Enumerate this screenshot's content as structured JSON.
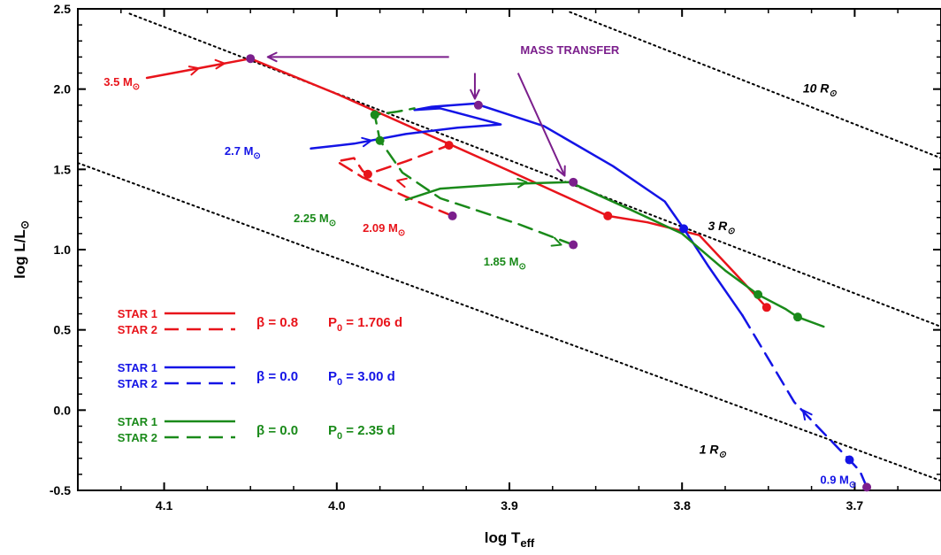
{
  "colors": {
    "red": "#e8141b",
    "blue": "#1414e6",
    "green": "#1a8a1a",
    "purple": "#7b1f8c"
  },
  "chart_data": {
    "type": "line",
    "xlabel": "log T",
    "xlabel_sub": "eff",
    "ylabel": "log L/L",
    "ylabel_sub": "⊙",
    "xlim": [
      4.15,
      3.65
    ],
    "ylim": [
      -0.5,
      2.5
    ],
    "x_reversed": true,
    "x_ticks": [
      4.1,
      4.0,
      3.9,
      3.8,
      3.7
    ],
    "x_tick_labels": [
      "4.1",
      "4.0",
      "3.9",
      "3.8",
      "3.7"
    ],
    "y_ticks": [
      -0.5,
      0.0,
      0.5,
      1.0,
      1.5,
      2.0,
      2.5
    ],
    "y_tick_labels": [
      "-0.5",
      "0.0",
      "0.5",
      "1.0",
      "1.5",
      "2.0",
      "2.5"
    ],
    "grid": false,
    "radius_lines": [
      {
        "label": "1 R",
        "sub": "⊙",
        "points": [
          [
            4.15,
            1.54
          ],
          [
            3.65,
            -0.44
          ]
        ],
        "label_at": [
          3.79,
          -0.27
        ]
      },
      {
        "label": "3 R",
        "sub": "⊙",
        "points": [
          [
            4.12,
            2.47
          ],
          [
            3.65,
            0.52
          ]
        ],
        "label_at": [
          3.785,
          1.12
        ]
      },
      {
        "label": "10 R",
        "sub": "⊙",
        "points": [
          [
            3.865,
            2.48
          ],
          [
            3.65,
            1.57
          ]
        ],
        "label_at": [
          3.73,
          1.98
        ]
      }
    ],
    "series": [
      {
        "name": "STAR 1",
        "color": "red",
        "dash": false,
        "points": [
          [
            4.11,
            2.07
          ],
          [
            4.08,
            2.13
          ],
          [
            4.05,
            2.19
          ],
          [
            4.0,
            1.97
          ],
          [
            3.95,
            1.73
          ],
          [
            3.9,
            1.49
          ],
          [
            3.843,
            1.21
          ],
          [
            3.82,
            1.17
          ],
          [
            3.79,
            1.09
          ],
          [
            3.77,
            0.86
          ],
          [
            3.751,
            0.64
          ]
        ]
      },
      {
        "name": "STAR 2",
        "color": "red",
        "dash": true,
        "points": [
          [
            3.933,
            1.21
          ],
          [
            3.96,
            1.33
          ],
          [
            3.985,
            1.45
          ],
          [
            4.0,
            1.55
          ],
          [
            3.99,
            1.57
          ],
          [
            3.985,
            1.49
          ],
          [
            3.982,
            1.47
          ],
          [
            3.96,
            1.55
          ],
          [
            3.935,
            1.65
          ]
        ]
      },
      {
        "name": "STAR 1",
        "color": "blue",
        "dash": false,
        "points": [
          [
            4.015,
            1.63
          ],
          [
            3.99,
            1.66
          ],
          [
            3.96,
            1.72
          ],
          [
            3.93,
            1.76
          ],
          [
            3.905,
            1.78
          ],
          [
            3.94,
            1.88
          ],
          [
            3.955,
            1.87
          ],
          [
            3.945,
            1.89
          ],
          [
            3.92,
            1.91
          ],
          [
            3.88,
            1.77
          ],
          [
            3.84,
            1.52
          ],
          [
            3.81,
            1.3
          ],
          [
            3.799,
            1.13
          ],
          [
            3.785,
            0.9
          ],
          [
            3.765,
            0.59
          ]
        ]
      },
      {
        "name": "STAR 2",
        "color": "blue",
        "dash": true,
        "points": [
          [
            3.765,
            0.59
          ],
          [
            3.75,
            0.32
          ],
          [
            3.735,
            0.05
          ],
          [
            3.72,
            -0.12
          ],
          [
            3.703,
            -0.31
          ],
          [
            3.697,
            -0.38
          ],
          [
            3.693,
            -0.48
          ]
        ]
      },
      {
        "name": "STAR 1",
        "color": "green",
        "dash": false,
        "points": [
          [
            3.96,
            1.31
          ],
          [
            3.94,
            1.38
          ],
          [
            3.9,
            1.41
          ],
          [
            3.865,
            1.42
          ],
          [
            3.83,
            1.25
          ],
          [
            3.8,
            1.1
          ],
          [
            3.775,
            0.87
          ],
          [
            3.756,
            0.72
          ],
          [
            3.74,
            0.63
          ],
          [
            3.733,
            0.58
          ],
          [
            3.718,
            0.52
          ]
        ]
      },
      {
        "name": "STAR 2",
        "color": "green",
        "dash": true,
        "points": [
          [
            3.863,
            1.03
          ],
          [
            3.895,
            1.16
          ],
          [
            3.94,
            1.32
          ],
          [
            3.962,
            1.48
          ],
          [
            3.975,
            1.68
          ],
          [
            3.978,
            1.84
          ],
          [
            3.965,
            1.86
          ],
          [
            3.955,
            1.88
          ]
        ]
      }
    ],
    "markers": [
      {
        "point": [
          4.05,
          2.19
        ],
        "color": "purple"
      },
      {
        "point": [
          3.918,
          1.9
        ],
        "color": "purple"
      },
      {
        "point": [
          3.863,
          1.42
        ],
        "color": "purple"
      },
      {
        "point": [
          3.863,
          1.03
        ],
        "color": "purple"
      },
      {
        "point": [
          3.933,
          1.21
        ],
        "color": "purple"
      },
      {
        "point": [
          3.693,
          -0.48
        ],
        "color": "purple"
      },
      {
        "point": [
          3.935,
          1.65
        ],
        "color": "red"
      },
      {
        "point": [
          3.982,
          1.47
        ],
        "color": "red"
      },
      {
        "point": [
          3.843,
          1.21
        ],
        "color": "red"
      },
      {
        "point": [
          3.751,
          0.64
        ],
        "color": "red"
      },
      {
        "point": [
          3.799,
          1.13
        ],
        "color": "blue"
      },
      {
        "point": [
          3.703,
          -0.31
        ],
        "color": "blue"
      },
      {
        "point": [
          3.978,
          1.84
        ],
        "color": "green"
      },
      {
        "point": [
          3.975,
          1.68
        ],
        "color": "green"
      },
      {
        "point": [
          3.756,
          0.72
        ],
        "color": "green"
      },
      {
        "point": [
          3.733,
          0.58
        ],
        "color": "green"
      }
    ],
    "direction_arrows": [
      {
        "from": [
          4.09,
          2.1
        ],
        "to": [
          4.08,
          2.13
        ],
        "color": "red"
      },
      {
        "from": [
          4.075,
          2.15
        ],
        "to": [
          4.065,
          2.16
        ],
        "color": "red"
      },
      {
        "from": [
          3.99,
          1.66
        ],
        "to": [
          3.98,
          1.68
        ],
        "color": "blue"
      },
      {
        "from": [
          3.92,
          1.39
        ],
        "to": [
          3.89,
          1.42
        ],
        "color": "green"
      },
      {
        "from": [
          3.95,
          1.39
        ],
        "to": [
          3.965,
          1.43
        ],
        "color": "red"
      },
      {
        "from": [
          3.885,
          1.09
        ],
        "to": [
          3.87,
          1.03
        ],
        "color": "green"
      },
      {
        "from": [
          3.725,
          -0.07
        ],
        "to": [
          3.73,
          0.0
        ],
        "color": "blue"
      }
    ],
    "labels": [
      {
        "text": "3.5 M",
        "sub": "⊙",
        "color": "red",
        "at": [
          4.135,
          2.02
        ]
      },
      {
        "text": "2.7 M",
        "sub": "⊙",
        "color": "blue",
        "at": [
          4.065,
          1.59
        ]
      },
      {
        "text": "2.25 M",
        "sub": "⊙",
        "color": "green",
        "at": [
          4.025,
          1.17
        ]
      },
      {
        "text": "2.09 M",
        "sub": "⊙",
        "color": "red",
        "at": [
          3.985,
          1.11
        ]
      },
      {
        "text": "1.85 M",
        "sub": "⊙",
        "color": "green",
        "at": [
          3.915,
          0.9
        ]
      },
      {
        "text": "0.9 M",
        "sub": "⊙",
        "color": "blue",
        "at": [
          3.72,
          -0.46
        ]
      }
    ],
    "mass_transfer": {
      "text": "MASS TRANSFER",
      "at": [
        3.865,
        2.22
      ],
      "color": "purple",
      "arrows": [
        {
          "from": [
            3.935,
            2.2
          ],
          "to": [
            4.04,
            2.2
          ]
        },
        {
          "from": [
            3.92,
            2.1
          ],
          "to": [
            3.92,
            1.94
          ]
        },
        {
          "from": [
            3.895,
            2.1
          ],
          "to": [
            3.868,
            1.46
          ]
        }
      ]
    },
    "legend": [
      {
        "color": "red",
        "rows": [
          "STAR 1",
          "STAR 2"
        ],
        "beta": "β = 0.8",
        "p": "P",
        "p_sub": "0",
        "p_val": " = 1.706 d"
      },
      {
        "color": "blue",
        "rows": [
          "STAR 1",
          "STAR 2"
        ],
        "beta": "β = 0.0",
        "p": "P",
        "p_sub": "0",
        "p_val": " = 3.00 d"
      },
      {
        "color": "green",
        "rows": [
          "STAR 1",
          "STAR 2"
        ],
        "beta": "β = 0.0",
        "p": "P",
        "p_sub": "0",
        "p_val": " = 2.35 d"
      }
    ]
  }
}
